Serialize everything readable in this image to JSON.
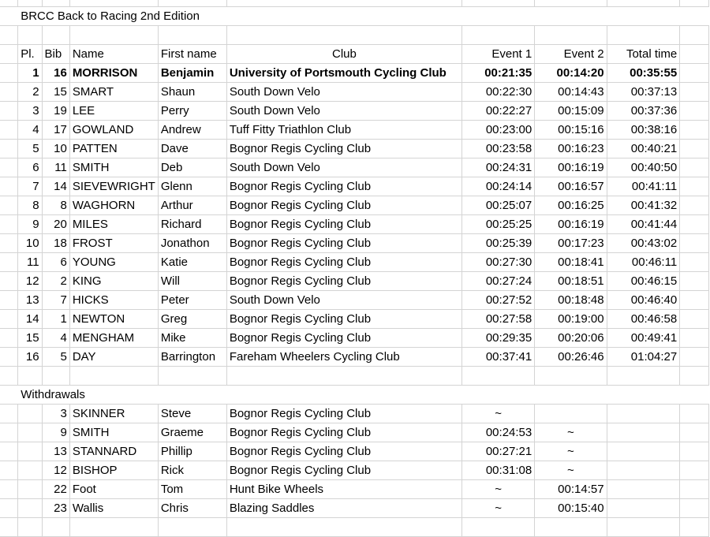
{
  "title": "BRCC Back to Racing 2nd Edition",
  "headers": {
    "place": "Pl.",
    "bib": "Bib",
    "name": "Name",
    "first_name": "First name",
    "club": "Club",
    "event1": "Event 1",
    "event2": "Event 2",
    "total": "Total time"
  },
  "results": [
    {
      "place": "1",
      "bib": "16",
      "name": "MORRISON",
      "first_name": "Benjamin",
      "club": "University of Portsmouth Cycling Club",
      "event1": "00:21:35",
      "event2": "00:14:20",
      "total": "00:35:55"
    },
    {
      "place": "2",
      "bib": "15",
      "name": "SMART",
      "first_name": "Shaun",
      "club": "South Down Velo",
      "event1": "00:22:30",
      "event2": "00:14:43",
      "total": "00:37:13"
    },
    {
      "place": "3",
      "bib": "19",
      "name": "LEE",
      "first_name": "Perry",
      "club": "South Down Velo",
      "event1": "00:22:27",
      "event2": "00:15:09",
      "total": "00:37:36"
    },
    {
      "place": "4",
      "bib": "17",
      "name": "GOWLAND",
      "first_name": "Andrew",
      "club": "Tuff Fitty Triathlon Club",
      "event1": "00:23:00",
      "event2": "00:15:16",
      "total": "00:38:16"
    },
    {
      "place": "5",
      "bib": "10",
      "name": "PATTEN",
      "first_name": "Dave",
      "club": "Bognor Regis Cycling Club",
      "event1": "00:23:58",
      "event2": "00:16:23",
      "total": "00:40:21"
    },
    {
      "place": "6",
      "bib": "11",
      "name": "SMITH",
      "first_name": "Deb",
      "club": "South Down Velo",
      "event1": "00:24:31",
      "event2": "00:16:19",
      "total": "00:40:50"
    },
    {
      "place": "7",
      "bib": "14",
      "name": "SIEVEWRIGHT",
      "first_name": "Glenn",
      "club": "Bognor Regis Cycling Club",
      "event1": "00:24:14",
      "event2": "00:16:57",
      "total": "00:41:11"
    },
    {
      "place": "8",
      "bib": "8",
      "name": "WAGHORN",
      "first_name": "Arthur",
      "club": "Bognor Regis Cycling Club",
      "event1": "00:25:07",
      "event2": "00:16:25",
      "total": "00:41:32"
    },
    {
      "place": "9",
      "bib": "20",
      "name": "MILES",
      "first_name": "Richard",
      "club": "Bognor Regis Cycling Club",
      "event1": "00:25:25",
      "event2": "00:16:19",
      "total": "00:41:44"
    },
    {
      "place": "10",
      "bib": "18",
      "name": "FROST",
      "first_name": "Jonathon",
      "club": "Bognor Regis Cycling Club",
      "event1": "00:25:39",
      "event2": "00:17:23",
      "total": "00:43:02"
    },
    {
      "place": "11",
      "bib": "6",
      "name": "YOUNG",
      "first_name": "Katie",
      "club": "Bognor Regis Cycling Club",
      "event1": "00:27:30",
      "event2": "00:18:41",
      "total": "00:46:11"
    },
    {
      "place": "12",
      "bib": "2",
      "name": "KING",
      "first_name": "Will",
      "club": "Bognor Regis Cycling Club",
      "event1": "00:27:24",
      "event2": "00:18:51",
      "total": "00:46:15"
    },
    {
      "place": "13",
      "bib": "7",
      "name": "HICKS",
      "first_name": "Peter",
      "club": "South Down Velo",
      "event1": "00:27:52",
      "event2": "00:18:48",
      "total": "00:46:40"
    },
    {
      "place": "14",
      "bib": "1",
      "name": "NEWTON",
      "first_name": "Greg",
      "club": "Bognor Regis Cycling Club",
      "event1": "00:27:58",
      "event2": "00:19:00",
      "total": "00:46:58"
    },
    {
      "place": "15",
      "bib": "4",
      "name": "MENGHAM",
      "first_name": "Mike",
      "club": "Bognor Regis Cycling Club",
      "event1": "00:29:35",
      "event2": "00:20:06",
      "total": "00:49:41"
    },
    {
      "place": "16",
      "bib": "5",
      "name": "DAY",
      "first_name": "Barrington",
      "club": "Fareham Wheelers Cycling Club",
      "event1": "00:37:41",
      "event2": "00:26:46",
      "total": "01:04:27"
    }
  ],
  "withdrawals_label": "Withdrawals",
  "withdrawals": [
    {
      "bib": "3",
      "name": "SKINNER",
      "first_name": "Steve",
      "club": "Bognor Regis Cycling Club",
      "event1": "~",
      "event2": ""
    },
    {
      "bib": "9",
      "name": "SMITH",
      "first_name": "Graeme",
      "club": "Bognor Regis Cycling Club",
      "event1": "00:24:53",
      "event2": "~"
    },
    {
      "bib": "13",
      "name": "STANNARD",
      "first_name": "Phillip",
      "club": "Bognor Regis Cycling Club",
      "event1": "00:27:21",
      "event2": "~"
    },
    {
      "bib": "12",
      "name": "BISHOP",
      "first_name": "Rick",
      "club": "Bognor Regis Cycling Club",
      "event1": "00:31:08",
      "event2": "~"
    },
    {
      "bib": "22",
      "name": "Foot",
      "first_name": "Tom",
      "club": "Hunt Bike Wheels",
      "event1": "~",
      "event2": "00:14:57"
    },
    {
      "bib": "23",
      "name": "Wallis",
      "first_name": "Chris",
      "club": "Blazing Saddles",
      "event1": "~",
      "event2": "00:15:40"
    }
  ]
}
